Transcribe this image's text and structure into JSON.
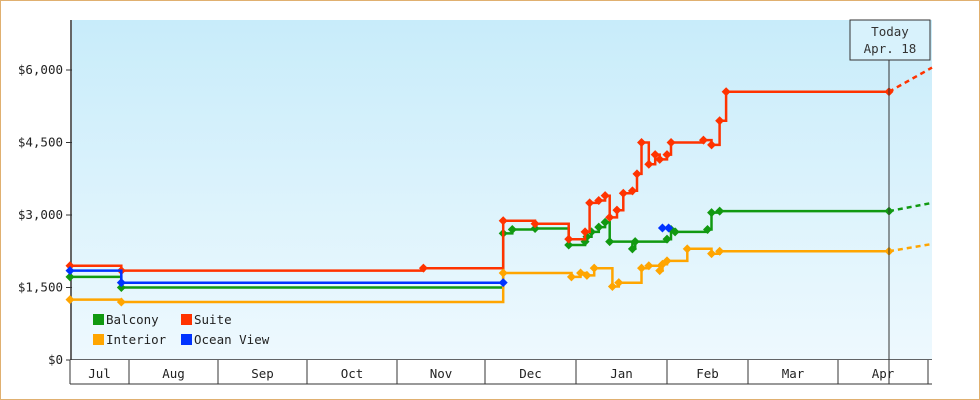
{
  "chart_data": {
    "type": "line",
    "title": "",
    "xlabel": "",
    "ylabel": "",
    "ylim": [
      0,
      7000
    ],
    "yticks": [
      0,
      1500,
      3000,
      4500,
      6000
    ],
    "ytick_labels": [
      "$0",
      "$1,500",
      "$3,000",
      "$4,500",
      "$6,000"
    ],
    "x_range": [
      -0.05,
      9.55
    ],
    "months": [
      {
        "label": "Jul",
        "start": 0
      },
      {
        "label": "Aug",
        "start": 0.97
      },
      {
        "label": "Sep",
        "start": 2
      },
      {
        "label": "Oct",
        "start": 3
      },
      {
        "label": "Nov",
        "start": 4
      },
      {
        "label": "Dec",
        "start": 5
      },
      {
        "label": "Jan",
        "start": 6
      },
      {
        "label": "Feb",
        "start": 7
      },
      {
        "label": "Mar",
        "start": 8
      },
      {
        "label": "Apr",
        "start": 9
      }
    ],
    "x_end": 9.55,
    "x_unit": "months since start of Jul",
    "today": {
      "x": 9.55,
      "label_line1": "Today",
      "label_line2": "Apr. 18"
    },
    "legend_placement": "bottom-left",
    "series": [
      {
        "name": "Balcony",
        "color": "#119911",
        "points": [
          [
            0,
            1720
          ],
          [
            0.87,
            1720
          ],
          [
            0.87,
            1500
          ],
          [
            5.2,
            1500
          ],
          [
            5.2,
            2620
          ],
          [
            5.3,
            2700
          ],
          [
            5.55,
            2700
          ],
          [
            5.55,
            2720
          ],
          [
            5.92,
            2720
          ],
          [
            5.92,
            2380
          ],
          [
            6.05,
            2380
          ],
          [
            6.1,
            2450
          ],
          [
            6.12,
            2550
          ],
          [
            6.17,
            2650
          ],
          [
            6.25,
            2750
          ],
          [
            6.32,
            2850
          ],
          [
            6.37,
            2450
          ],
          [
            6.6,
            2450
          ],
          [
            6.62,
            2300
          ],
          [
            6.65,
            2450
          ],
          [
            6.95,
            2450
          ],
          [
            7.0,
            2500
          ],
          [
            7.05,
            2700
          ],
          [
            7.1,
            2650
          ],
          [
            7.5,
            2700
          ],
          [
            7.55,
            3050
          ],
          [
            7.65,
            3080
          ],
          [
            9.55,
            3080
          ]
        ],
        "forecast": [
          9.55,
          10.0,
          3250
        ]
      },
      {
        "name": "Suite",
        "color": "#ff3300",
        "points": [
          [
            0,
            1950
          ],
          [
            0.87,
            1950
          ],
          [
            0.87,
            1850
          ],
          [
            4.3,
            1850
          ],
          [
            4.3,
            1900
          ],
          [
            5.2,
            1900
          ],
          [
            5.2,
            2880
          ],
          [
            5.55,
            2880
          ],
          [
            5.55,
            2820
          ],
          [
            5.92,
            2820
          ],
          [
            5.92,
            2500
          ],
          [
            6.05,
            2500
          ],
          [
            6.1,
            2650
          ],
          [
            6.15,
            3250
          ],
          [
            6.25,
            3300
          ],
          [
            6.32,
            3400
          ],
          [
            6.37,
            2950
          ],
          [
            6.45,
            3100
          ],
          [
            6.52,
            3450
          ],
          [
            6.62,
            3500
          ],
          [
            6.67,
            3850
          ],
          [
            6.72,
            4500
          ],
          [
            6.8,
            4050
          ],
          [
            6.87,
            4250
          ],
          [
            6.92,
            4150
          ],
          [
            7.0,
            4250
          ],
          [
            7.05,
            4500
          ],
          [
            7.45,
            4550
          ],
          [
            7.55,
            4450
          ],
          [
            7.65,
            4950
          ],
          [
            7.73,
            5550
          ],
          [
            9.55,
            5550
          ]
        ],
        "forecast": [
          9.55,
          10.0,
          6050
        ]
      },
      {
        "name": "Interior",
        "color": "#ffa500",
        "points": [
          [
            0,
            1250
          ],
          [
            0.87,
            1250
          ],
          [
            0.87,
            1200
          ],
          [
            5.2,
            1200
          ],
          [
            5.2,
            1800
          ],
          [
            5.92,
            1800
          ],
          [
            5.95,
            1720
          ],
          [
            6.05,
            1800
          ],
          [
            6.12,
            1750
          ],
          [
            6.2,
            1900
          ],
          [
            6.37,
            1900
          ],
          [
            6.4,
            1520
          ],
          [
            6.47,
            1600
          ],
          [
            6.67,
            1600
          ],
          [
            6.72,
            1900
          ],
          [
            6.8,
            1950
          ],
          [
            6.92,
            1850
          ],
          [
            6.95,
            1980
          ],
          [
            7.0,
            2050
          ],
          [
            7.2,
            2050
          ],
          [
            7.25,
            2300
          ],
          [
            7.45,
            2300
          ],
          [
            7.55,
            2200
          ],
          [
            7.65,
            2250
          ],
          [
            9.55,
            2250
          ]
        ],
        "forecast": [
          9.55,
          10.0,
          2400
        ]
      },
      {
        "name": "Ocean View",
        "color": "#0033ff",
        "points": [
          [
            0,
            1850
          ],
          [
            0.87,
            1850
          ],
          [
            0.87,
            1600
          ],
          [
            5.2,
            1600
          ],
          [
            5.2,
            1600
          ]
        ],
        "extra_points": [
          [
            6.95,
            2730
          ],
          [
            7.02,
            2730
          ]
        ],
        "forecast": null
      }
    ]
  }
}
